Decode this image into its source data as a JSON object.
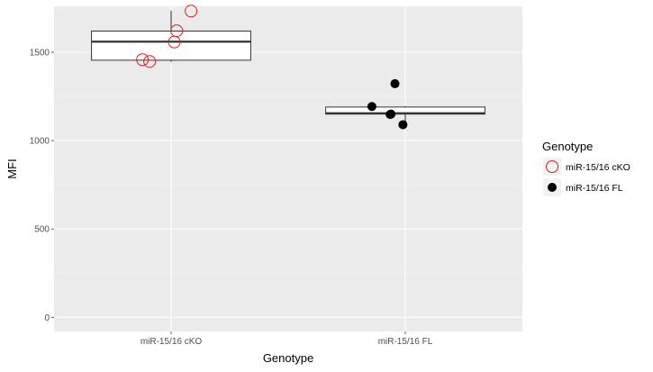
{
  "chart_data": {
    "type": "box",
    "xlabel": "Genotype",
    "ylabel": "MFI",
    "ylim": [
      -80,
      1760
    ],
    "yticks": [
      0,
      500,
      1000,
      1500
    ],
    "categories": [
      "miR-15/16 cKO",
      "miR-15/16 FL"
    ],
    "boxes": [
      {
        "category": "miR-15/16 cKO",
        "q1": 1455,
        "median": 1560,
        "q3": 1620,
        "whisker_low": 1445,
        "whisker_high": 1735
      },
      {
        "category": "miR-15/16 FL",
        "q1": 1150,
        "median": 1155,
        "q3": 1190,
        "whisker_low": 1090,
        "whisker_high": 1195
      }
    ],
    "series": [
      {
        "name": "miR-15/16 cKO",
        "marker": "open-circle",
        "color": "#e31a1c",
        "points": [
          {
            "category": "miR-15/16 cKO",
            "jitter": 0.25,
            "y": 1733
          },
          {
            "category": "miR-15/16 cKO",
            "jitter": 0.07,
            "y": 1622
          },
          {
            "category": "miR-15/16 cKO",
            "jitter": 0.04,
            "y": 1558
          },
          {
            "category": "miR-15/16 cKO",
            "jitter": -0.36,
            "y": 1458
          },
          {
            "category": "miR-15/16 cKO",
            "jitter": -0.27,
            "y": 1448
          }
        ]
      },
      {
        "name": "miR-15/16 FL",
        "marker": "filled-circle",
        "color": "#000000",
        "points": [
          {
            "category": "miR-15/16 FL",
            "jitter": -0.42,
            "y": 1193
          },
          {
            "category": "miR-15/16 FL",
            "jitter": -0.18,
            "y": 1150
          },
          {
            "category": "miR-15/16 FL",
            "jitter": -0.19,
            "y": 1148
          },
          {
            "category": "miR-15/16 FL",
            "jitter": -0.13,
            "y": 1322
          },
          {
            "category": "miR-15/16 FL",
            "jitter": -0.03,
            "y": 1090
          }
        ]
      }
    ],
    "legend": {
      "title": "Genotype",
      "position": "right",
      "entries": [
        "miR-15/16 cKO",
        "miR-15/16 FL"
      ]
    },
    "grid": true,
    "panel_color": "#ebebeb"
  }
}
